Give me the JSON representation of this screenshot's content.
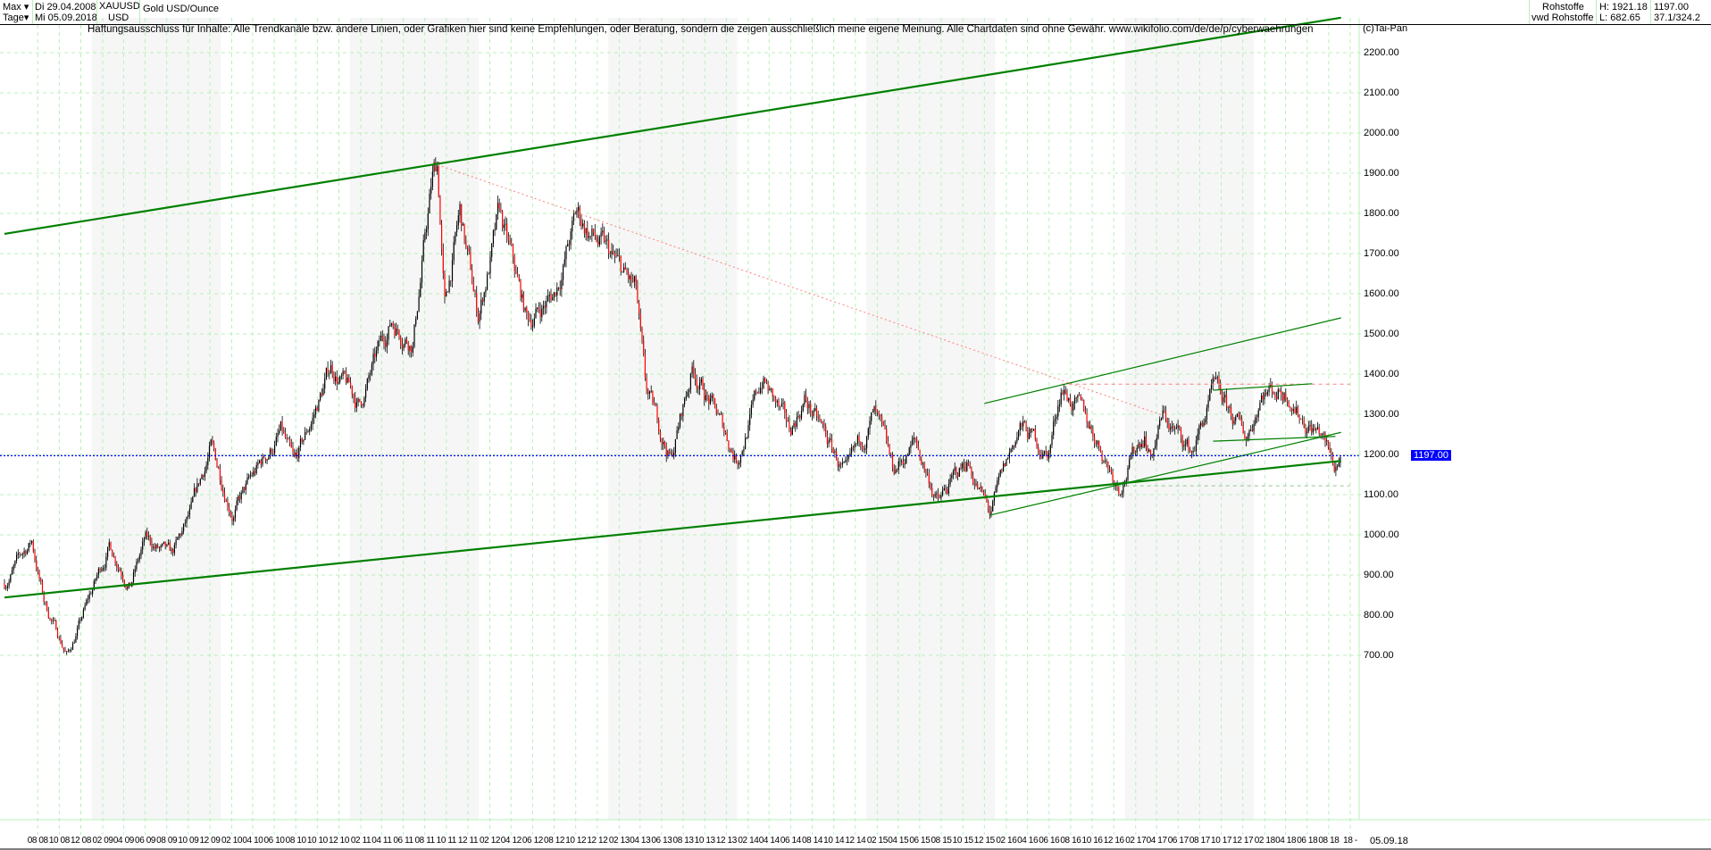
{
  "header": {
    "range": "Max",
    "interval": "Tage",
    "start_date": "Di 29.04.2008",
    "end_date": "Mi 05.09.2018",
    "symbol": "XAUUSD",
    "currency": "USD",
    "name": "Gold USD/Ounce",
    "group": "Rohstoffe",
    "source": "vwd Rohstoffe",
    "high": "H: 1921.18",
    "low": "L: 682.65",
    "last": "1197.00",
    "scale": "37.1/324.2"
  },
  "disclaimer": "Haftungsausschluss für Inhalte: Alle Trendkanäle bzw. andere Linien, oder Grafiken hier sind keine Empfehlungen, oder Beratung, sondern die zeigen ausschließlich meine eigene Meinung. Alle Chartdaten sind ohne Gewähr.  www.wikifolio.com/de/de/p/cyberwaehrungen",
  "copyright": "(c)Tai-Pan",
  "colors": {
    "up": "#000000",
    "down": "#ff0000",
    "trend": "#008000",
    "resistance": "#ff8080",
    "current": "#0000ff",
    "grid": "#b8f0b8"
  },
  "chart_data": {
    "type": "candlestick",
    "title": "Gold USD/Ounce",
    "ylim": [
      660,
      2270
    ],
    "xlim": [
      "2008-04-29",
      "2018-09-05"
    ],
    "grid": true,
    "yticks": [
      "700.00",
      "800.00",
      "900.00",
      "1000.00",
      "1100.00",
      "1200.00",
      "1300.00",
      "1400.00",
      "1500.00",
      "1600.00",
      "1700.00",
      "1800.00",
      "1900.00",
      "2000.00",
      "2100.00",
      "2200.00"
    ],
    "ytick_values": [
      700,
      800,
      900,
      1000,
      1100,
      1200,
      1300,
      1400,
      1500,
      1600,
      1700,
      1800,
      1900,
      2000,
      2100,
      2200
    ],
    "xticks": [
      "08 08",
      "10 08",
      "12 08",
      "02 09",
      "04 09",
      "06 09",
      "08 09",
      "10 09",
      "12 09",
      "02 10",
      "04 10",
      "06 10",
      "08 10",
      "10 10",
      "12 10",
      "02 11",
      "04 11",
      "06 11",
      "08 11",
      "10 11",
      "12 11",
      "02 12",
      "04 12",
      "06 12",
      "08 12",
      "10 12",
      "12 12",
      "02 13",
      "04 13",
      "06 13",
      "08 13",
      "10 13",
      "12 13",
      "02 14",
      "04 14",
      "06 14",
      "08 14",
      "10 14",
      "12 14",
      "02 15",
      "04 15",
      "06 15",
      "08 15",
      "10 15",
      "12 15",
      "02 16",
      "04 16",
      "06 16",
      "08 16",
      "10 16",
      "12 16",
      "02 17",
      "04 17",
      "06 17",
      "08 17",
      "10 17",
      "12 17",
      "02 18",
      "04 18",
      "06 18",
      "08 18",
      "18 -"
    ],
    "end_label": "05.09.18",
    "current_price": 1197.0,
    "current_label": "1197.00",
    "high": 1921.18,
    "low": 682.65,
    "price_path": [
      [
        "2008-04-29",
        880
      ],
      [
        "2008-07-15",
        985
      ],
      [
        "2008-08-20",
        830
      ],
      [
        "2008-10-24",
        700
      ],
      [
        "2008-11-20",
        760
      ],
      [
        "2009-02-20",
        975
      ],
      [
        "2009-04-20",
        880
      ],
      [
        "2009-06-01",
        985
      ],
      [
        "2009-08-15",
        940
      ],
      [
        "2009-10-10",
        1050
      ],
      [
        "2009-12-03",
        1215
      ],
      [
        "2010-02-05",
        1060
      ],
      [
        "2010-06-20",
        1255
      ],
      [
        "2010-07-28",
        1160
      ],
      [
        "2010-11-09",
        1420
      ],
      [
        "2011-01-28",
        1320
      ],
      [
        "2011-04-28",
        1535
      ],
      [
        "2011-06-28",
        1490
      ],
      [
        "2011-08-22",
        1880
      ],
      [
        "2011-09-06",
        1921
      ],
      [
        "2011-09-26",
        1560
      ],
      [
        "2011-11-08",
        1795
      ],
      [
        "2011-12-29",
        1540
      ],
      [
        "2012-02-28",
        1790
      ],
      [
        "2012-05-16",
        1530
      ],
      [
        "2012-08-01",
        1600
      ],
      [
        "2012-10-04",
        1795
      ],
      [
        "2013-01-02",
        1690
      ],
      [
        "2013-03-20",
        1600
      ],
      [
        "2013-04-16",
        1350
      ],
      [
        "2013-06-28",
        1190
      ],
      [
        "2013-08-28",
        1420
      ],
      [
        "2013-12-31",
        1190
      ],
      [
        "2014-03-14",
        1390
      ],
      [
        "2014-05-28",
        1250
      ],
      [
        "2014-07-10",
        1340
      ],
      [
        "2014-11-07",
        1140
      ],
      [
        "2015-01-22",
        1300
      ],
      [
        "2015-03-17",
        1150
      ],
      [
        "2015-05-18",
        1230
      ],
      [
        "2015-07-24",
        1080
      ],
      [
        "2015-10-14",
        1185
      ],
      [
        "2015-12-17",
        1050
      ],
      [
        "2016-03-10",
        1270
      ],
      [
        "2016-05-30",
        1200
      ],
      [
        "2016-07-06",
        1375
      ],
      [
        "2016-10-07",
        1250
      ],
      [
        "2016-12-15",
        1125
      ],
      [
        "2017-02-27",
        1260
      ],
      [
        "2017-03-15",
        1195
      ],
      [
        "2017-04-17",
        1295
      ],
      [
        "2017-07-10",
        1205
      ],
      [
        "2017-09-08",
        1355
      ],
      [
        "2017-12-12",
        1240
      ],
      [
        "2018-01-25",
        1365
      ],
      [
        "2018-04-11",
        1360
      ],
      [
        "2018-05-21",
        1290
      ],
      [
        "2018-07-10",
        1255
      ],
      [
        "2018-08-16",
        1165
      ],
      [
        "2018-09-05",
        1197
      ]
    ],
    "trendlines": [
      {
        "role": "upper-channel",
        "style": "solid-thick",
        "color": "#008000",
        "from": [
          "2008-04-29",
          1749
        ],
        "to": [
          "2018-09-05",
          2287
        ]
      },
      {
        "role": "lower-channel",
        "style": "solid-thick",
        "color": "#008000",
        "from": [
          "2008-04-29",
          844
        ],
        "to": [
          "2018-09-05",
          1184
        ]
      },
      {
        "role": "downtrend",
        "style": "dotted",
        "color": "#ff8080",
        "from": [
          "2011-09-06",
          1921
        ],
        "to": [
          "2017-04-17",
          1298
        ]
      },
      {
        "role": "resistance",
        "style": "dashed",
        "color": "#ff8080",
        "from": [
          "2016-07-06",
          1375
        ],
        "to": [
          "2018-09-30",
          1375
        ]
      },
      {
        "role": "support",
        "style": "dashed",
        "color": "#90c890",
        "from": [
          "2016-12-15",
          1122
        ],
        "to": [
          "2018-09-30",
          1122
        ]
      },
      {
        "role": "channel-upper-thin",
        "style": "solid",
        "color": "#008000",
        "from": [
          "2015-12-01",
          1327
        ],
        "to": [
          "2018-09-05",
          1540
        ]
      },
      {
        "role": "channel-lower-thin",
        "style": "solid",
        "color": "#008000",
        "from": [
          "2015-12-17",
          1049
        ],
        "to": [
          "2018-09-05",
          1255
        ]
      },
      {
        "role": "top-line",
        "style": "solid",
        "color": "#008000",
        "from": [
          "2017-09-08",
          1360
        ],
        "to": [
          "2018-06-15",
          1376
        ]
      },
      {
        "role": "mid-line",
        "style": "solid",
        "color": "#008000",
        "from": [
          "2017-09-08",
          1233
        ],
        "to": [
          "2018-08-20",
          1245
        ]
      }
    ]
  }
}
